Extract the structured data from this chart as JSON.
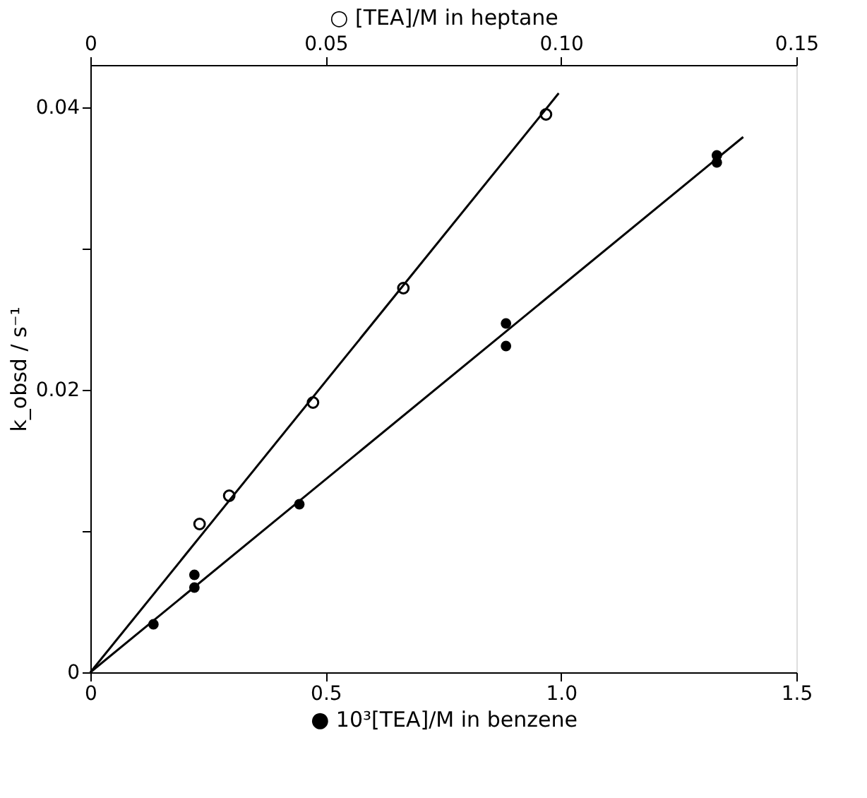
{
  "chart_data": {
    "type": "scatter",
    "xlabel": "● 10³[TEA]/M   in benzene",
    "x2label": "○  [TEA]/M   in   heptane",
    "ylabel": "k_obsd / s⁻¹",
    "xlim": [
      0,
      1.5
    ],
    "xticks": [
      0,
      0.5,
      {
        "value": 1.0,
        "label": "1.0"
      },
      1.5
    ],
    "x2lim": [
      0,
      0.15
    ],
    "x2ticks": [
      0,
      0.05,
      {
        "value": 0.1,
        "label": "0.10"
      },
      0.15
    ],
    "ylim": [
      0,
      0.043
    ],
    "yticks": [
      0,
      {
        "value": 0.01,
        "label": null
      },
      0.02,
      {
        "value": 0.03,
        "label": null
      },
      0.04
    ],
    "grid": false,
    "marker": "circle",
    "series": [
      {
        "axis": "x2",
        "color": "#000000",
        "x": [
          0.0232,
          0.0295,
          0.0473,
          0.0665,
          0.0968
        ],
        "values": [
          0.0105,
          0.0125,
          0.0191,
          0.0272,
          0.0395
        ]
      },
      {
        "type": "line",
        "axis": "x2",
        "color": "#000000",
        "line_style": "solid",
        "marker": "none",
        "x": [
          0,
          0.0995
        ],
        "values": [
          0,
          0.041
        ]
      },
      {
        "color": "#000000",
        "x": [
          0.134,
          0.221,
          0.221,
          0.444,
          0.883,
          0.883,
          1.331,
          1.331
        ],
        "values": [
          0.0034,
          0.0069,
          0.006,
          0.0119,
          0.0247,
          0.0231,
          0.0366,
          0.0361
        ]
      },
      {
        "type": "line",
        "color": "#000000",
        "line_style": "solid",
        "marker": "none",
        "x": [
          0,
          1.387
        ],
        "values": [
          0,
          0.0379
        ]
      }
    ]
  }
}
